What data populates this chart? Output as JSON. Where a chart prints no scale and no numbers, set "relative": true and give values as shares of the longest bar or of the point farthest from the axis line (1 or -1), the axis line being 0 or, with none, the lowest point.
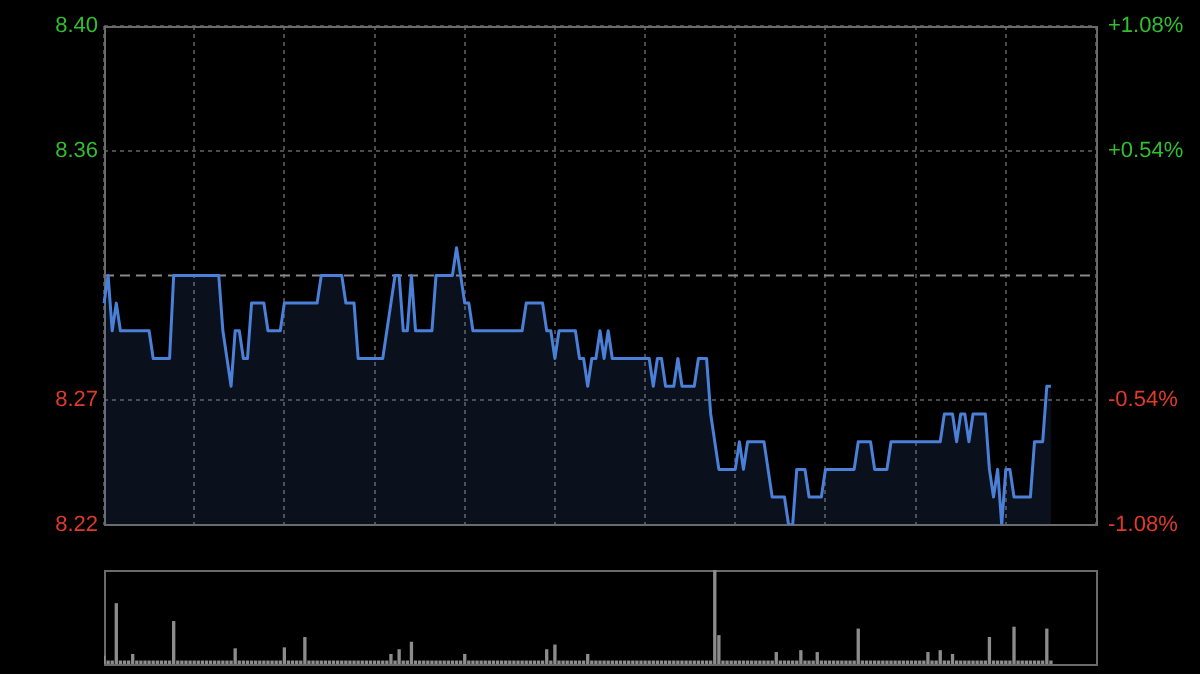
{
  "chart_data": [
    {
      "type": "area",
      "categories": [
        null,
        null,
        null,
        null,
        null,
        null,
        null,
        null,
        null,
        null,
        null,
        null,
        null,
        null,
        null,
        null,
        null,
        null,
        null,
        null,
        null,
        null,
        null,
        null,
        null,
        null,
        null,
        null,
        null,
        null,
        null,
        null,
        null,
        null,
        null,
        null,
        null,
        null,
        null,
        null,
        null,
        null,
        null,
        null,
        null,
        null,
        null,
        null,
        null,
        null,
        null,
        null,
        null,
        null,
        null,
        null,
        null,
        null,
        null,
        null,
        null,
        null,
        null,
        null,
        null,
        null,
        null,
        null,
        null,
        null,
        null,
        null,
        null,
        null,
        null,
        null,
        null,
        null,
        null,
        null,
        null,
        null,
        null,
        null,
        null,
        null,
        null,
        null,
        null,
        null,
        null,
        null,
        null,
        null,
        null,
        null,
        null,
        null,
        null,
        null,
        null,
        null,
        null,
        null,
        null,
        null,
        null,
        null,
        null,
        null,
        null,
        null,
        null,
        null,
        null,
        null,
        null,
        null,
        null,
        null,
        null,
        null,
        null,
        null,
        null,
        null,
        null,
        null,
        null,
        null,
        null,
        null,
        null,
        null,
        null,
        null,
        null,
        null,
        null,
        null,
        null,
        null,
        null,
        null,
        null,
        null,
        null,
        null,
        null,
        null,
        null,
        null,
        null,
        null,
        null,
        null,
        null,
        null,
        null,
        null,
        null,
        null,
        null,
        null,
        null,
        null,
        null,
        null,
        null,
        null,
        null,
        null,
        null,
        null,
        null,
        null,
        null,
        null,
        null,
        null,
        null,
        null,
        null,
        null,
        null,
        null,
        null,
        null,
        null,
        null,
        null,
        null,
        null,
        null,
        null,
        null,
        null,
        null,
        null,
        null,
        null,
        null,
        null,
        null,
        null,
        null,
        null,
        null,
        null,
        null,
        null,
        null,
        null,
        null,
        null,
        null,
        null,
        null,
        null,
        null,
        null,
        null,
        null,
        null,
        null,
        null,
        null,
        null,
        null,
        null,
        null,
        null,
        null,
        null,
        null,
        null,
        null,
        null,
        null,
        null,
        null,
        null,
        null
      ],
      "series": [
        {
          "color": "#4a80d8",
          "values": [
            8.3,
            8.31,
            8.29,
            8.3,
            8.29,
            8.29,
            8.29,
            8.29,
            8.29,
            8.29,
            8.29,
            8.29,
            8.28,
            8.28,
            8.28,
            8.28,
            8.28,
            8.31,
            8.31,
            8.31,
            8.31,
            8.31,
            8.31,
            8.31,
            8.31,
            8.31,
            8.31,
            8.31,
            8.31,
            8.29,
            8.28,
            8.27,
            8.29,
            8.29,
            8.28,
            8.28,
            8.3,
            8.3,
            8.3,
            8.3,
            8.29,
            8.29,
            8.29,
            8.29,
            8.3,
            8.3,
            8.3,
            8.3,
            8.3,
            8.3,
            8.3,
            8.3,
            8.3,
            8.31,
            8.31,
            8.31,
            8.31,
            8.31,
            8.31,
            8.3,
            8.3,
            8.3,
            8.28,
            8.28,
            8.28,
            8.28,
            8.28,
            8.28,
            8.28,
            8.29,
            8.3,
            8.31,
            8.31,
            8.29,
            8.29,
            8.31,
            8.29,
            8.29,
            8.29,
            8.29,
            8.29,
            8.31,
            8.31,
            8.31,
            8.31,
            8.31,
            8.32,
            8.31,
            8.3,
            8.3,
            8.29,
            8.29,
            8.29,
            8.29,
            8.29,
            8.29,
            8.29,
            8.29,
            8.29,
            8.29,
            8.29,
            8.29,
            8.29,
            8.3,
            8.3,
            8.3,
            8.3,
            8.3,
            8.29,
            8.29,
            8.28,
            8.29,
            8.29,
            8.29,
            8.29,
            8.29,
            8.28,
            8.28,
            8.27,
            8.28,
            8.28,
            8.29,
            8.28,
            8.29,
            8.28,
            8.28,
            8.28,
            8.28,
            8.28,
            8.28,
            8.28,
            8.28,
            8.28,
            8.28,
            8.27,
            8.28,
            8.28,
            8.27,
            8.27,
            8.27,
            8.28,
            8.27,
            8.27,
            8.27,
            8.27,
            8.28,
            8.28,
            8.28,
            8.26,
            8.25,
            8.24,
            8.24,
            8.24,
            8.24,
            8.24,
            8.25,
            8.24,
            8.25,
            8.25,
            8.25,
            8.25,
            8.25,
            8.24,
            8.23,
            8.23,
            8.23,
            8.23,
            8.22,
            8.22,
            8.24,
            8.24,
            8.24,
            8.23,
            8.23,
            8.23,
            8.23,
            8.24,
            8.24,
            8.24,
            8.24,
            8.24,
            8.24,
            8.24,
            8.24,
            8.25,
            8.25,
            8.25,
            8.25,
            8.24,
            8.24,
            8.24,
            8.24,
            8.25,
            8.25,
            8.25,
            8.25,
            8.25,
            8.25,
            8.25,
            8.25,
            8.25,
            8.25,
            8.25,
            8.25,
            8.25,
            8.26,
            8.26,
            8.26,
            8.25,
            8.26,
            8.26,
            8.25,
            8.26,
            8.26,
            8.26,
            8.26,
            8.24,
            8.23,
            8.24,
            8.22,
            8.24,
            8.24,
            8.23,
            8.23,
            8.23,
            8.23,
            8.23,
            8.25,
            8.25,
            8.25,
            8.27,
            8.27,
            null,
            null,
            null,
            null,
            null,
            null,
            null,
            null,
            null,
            null,
            null
          ]
        }
      ],
      "ylim": [
        8.22,
        8.4
      ],
      "yticks": [
        {
          "value": 8.4,
          "label": "8.40"
        },
        {
          "value": 8.355,
          "label": "8.36"
        },
        {
          "value": 8.265,
          "label": "8.27"
        },
        {
          "value": 8.22,
          "label": "8.22"
        }
      ],
      "y2lim": [
        -1.08,
        1.08
      ],
      "y2ticks": [
        {
          "value": 1.08,
          "label": "+1.08%"
        },
        {
          "value": 0.54,
          "label": "+0.54%"
        },
        {
          "value": -0.54,
          "label": "-0.54%"
        },
        {
          "value": -1.08,
          "label": "-1.08%"
        }
      ],
      "ref_lines": [
        {
          "axis": "y",
          "value": 8.31,
          "color": "#8a8a8a",
          "line_style": "dashed"
        }
      ],
      "grid": true,
      "tick_labels": "y",
      "legend": false,
      "marker": "none"
    },
    {
      "type": "bar",
      "relative": true,
      "categories": [
        null,
        null,
        null,
        null,
        null,
        null,
        null,
        null,
        null,
        null,
        null,
        null,
        null,
        null,
        null,
        null,
        null,
        null,
        null,
        null,
        null,
        null,
        null,
        null,
        null,
        null,
        null,
        null,
        null,
        null,
        null,
        null,
        null,
        null,
        null,
        null,
        null,
        null,
        null,
        null,
        null,
        null,
        null,
        null,
        null,
        null,
        null,
        null,
        null,
        null,
        null,
        null,
        null,
        null,
        null,
        null,
        null,
        null,
        null,
        null,
        null,
        null,
        null,
        null,
        null,
        null,
        null,
        null,
        null,
        null,
        null,
        null,
        null,
        null,
        null,
        null,
        null,
        null,
        null,
        null,
        null,
        null,
        null,
        null,
        null,
        null,
        null,
        null,
        null,
        null,
        null,
        null,
        null,
        null,
        null,
        null,
        null,
        null,
        null,
        null,
        null,
        null,
        null,
        null,
        null,
        null,
        null,
        null,
        null,
        null,
        null,
        null,
        null,
        null,
        null,
        null,
        null,
        null,
        null,
        null,
        null,
        null,
        null,
        null,
        null,
        null,
        null,
        null,
        null,
        null,
        null,
        null,
        null,
        null,
        null,
        null,
        null,
        null,
        null,
        null,
        null,
        null,
        null,
        null,
        null,
        null,
        null,
        null,
        null,
        null,
        null,
        null,
        null,
        null,
        null,
        null,
        null,
        null,
        null,
        null,
        null,
        null,
        null,
        null,
        null,
        null,
        null,
        null,
        null,
        null,
        null,
        null,
        null,
        null,
        null,
        null,
        null,
        null,
        null,
        null,
        null,
        null,
        null,
        null,
        null,
        null,
        null,
        null,
        null,
        null,
        null,
        null,
        null,
        null,
        null,
        null,
        null,
        null,
        null,
        null,
        null,
        null,
        null,
        null,
        null,
        null,
        null,
        null,
        null,
        null,
        null,
        null,
        null,
        null,
        null,
        null,
        null,
        null,
        null,
        null,
        null,
        null,
        null,
        null,
        null,
        null,
        null,
        null,
        null,
        null,
        null,
        null,
        null,
        null,
        null,
        null,
        null,
        null,
        null,
        null,
        null,
        null,
        null
      ],
      "color": "#8c8c8c",
      "values": [
        0.08,
        0.03,
        0.03,
        0.64,
        0.03,
        0.03,
        0.03,
        0.1,
        0.03,
        0.03,
        0.03,
        0.03,
        0.03,
        0.03,
        0.03,
        0.03,
        0.03,
        0.45,
        0.03,
        0.03,
        0.03,
        0.03,
        0.03,
        0.03,
        0.03,
        0.03,
        0.03,
        0.03,
        0.03,
        0.03,
        0.03,
        0.03,
        0.16,
        0.03,
        0.03,
        0.03,
        0.03,
        0.03,
        0.03,
        0.03,
        0.03,
        0.03,
        0.03,
        0.03,
        0.17,
        0.03,
        0.03,
        0.03,
        0.03,
        0.28,
        0.03,
        0.03,
        0.03,
        0.03,
        0.03,
        0.03,
        0.03,
        0.03,
        0.03,
        0.03,
        0.03,
        0.03,
        0.03,
        0.03,
        0.03,
        0.03,
        0.03,
        0.03,
        0.03,
        0.03,
        0.1,
        0.03,
        0.15,
        0.03,
        0.03,
        0.23,
        0.03,
        0.03,
        0.03,
        0.03,
        0.03,
        0.03,
        0.03,
        0.03,
        0.03,
        0.03,
        0.03,
        0.03,
        0.1,
        0.03,
        0.03,
        0.03,
        0.03,
        0.03,
        0.03,
        0.03,
        0.03,
        0.03,
        0.03,
        0.03,
        0.03,
        0.03,
        0.03,
        0.03,
        0.03,
        0.03,
        0.03,
        0.03,
        0.15,
        0.03,
        0.2,
        0.03,
        0.03,
        0.03,
        0.03,
        0.03,
        0.03,
        0.03,
        0.1,
        0.03,
        0.03,
        0.03,
        0.03,
        0.03,
        0.03,
        0.03,
        0.03,
        0.03,
        0.03,
        0.03,
        0.03,
        0.03,
        0.03,
        0.03,
        0.03,
        0.03,
        0.03,
        0.03,
        0.03,
        0.03,
        0.03,
        0.03,
        0.03,
        0.03,
        0.03,
        0.03,
        0.03,
        0.03,
        0.03,
        1,
        0.3,
        0.03,
        0.03,
        0.03,
        0.03,
        0.03,
        0.03,
        0.03,
        0.03,
        0.03,
        0.03,
        0.03,
        0.03,
        0.03,
        0.12,
        0.03,
        0.03,
        0.03,
        0.03,
        0.03,
        0.14,
        0.03,
        0.03,
        0.03,
        0.12,
        0.03,
        0.03,
        0.03,
        0.03,
        0.03,
        0.03,
        0.03,
        0.03,
        0.03,
        0.37,
        0.03,
        0.03,
        0.03,
        0.03,
        0.03,
        0.03,
        0.03,
        0.03,
        0.03,
        0.03,
        0.03,
        0.03,
        0.03,
        0.03,
        0.03,
        0.03,
        0.12,
        0.03,
        0.03,
        0.14,
        0.03,
        0.03,
        0.1,
        0.03,
        0.03,
        0.03,
        0.03,
        0.03,
        0.03,
        0.03,
        0.03,
        0.28,
        0.03,
        0.03,
        0.03,
        0.03,
        0.03,
        0.39,
        0.03,
        0.03,
        0.03,
        0.03,
        0.03,
        0.03,
        0.03,
        0.37,
        0.03,
        null,
        null,
        null,
        null,
        null,
        null,
        null,
        null,
        null,
        null,
        null
      ],
      "tick_labels": false,
      "legend": false
    }
  ]
}
